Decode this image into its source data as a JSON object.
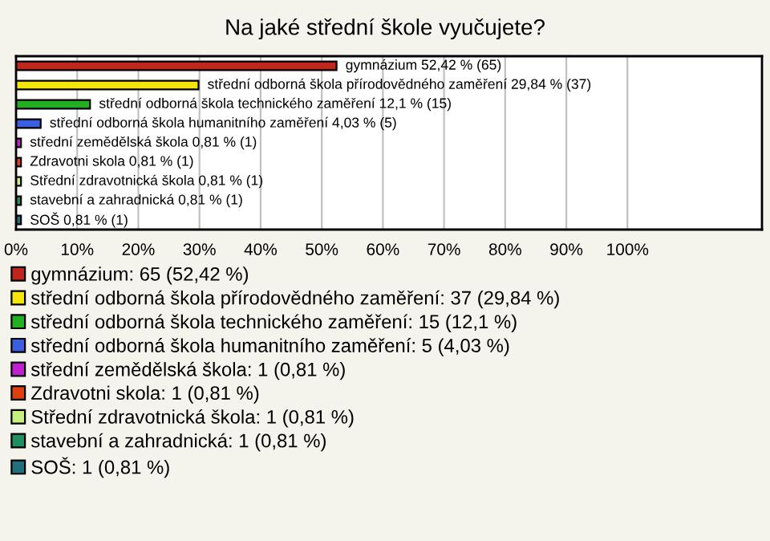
{
  "chart_data": {
    "type": "bar",
    "orientation": "horizontal",
    "title": "Na jaké střední škole vyučujete?",
    "categories": [
      null,
      null,
      null,
      null,
      null,
      null,
      null,
      null,
      null
    ],
    "series": [
      {
        "name": "gymnázium: 65 (52,42 %)",
        "color": "#c0261c",
        "values": [
          52.42,
          null,
          null,
          null,
          null,
          null,
          null,
          null,
          null
        ],
        "value_labels": [
          "gymnázium 52,42 % (65)",
          null,
          null,
          null,
          null,
          null,
          null,
          null,
          null
        ]
      },
      {
        "name": "střední odborná škola přírodovědného zaměření: 37 (29,84 %)",
        "color": "#f5e50a",
        "values": [
          null,
          29.84,
          null,
          null,
          null,
          null,
          null,
          null,
          null
        ],
        "value_labels": [
          null,
          "střední odborná škola přírodovědného zaměření 29,84 % (37)",
          null,
          null,
          null,
          null,
          null,
          null,
          null
        ]
      },
      {
        "name": "střední odborná škola technického zaměření: 15 (12,1 %)",
        "color": "#22b022",
        "values": [
          null,
          null,
          12.1,
          null,
          null,
          null,
          null,
          null,
          null
        ],
        "value_labels": [
          null,
          null,
          "střední odborná škola technického zaměření 12,1 % (15)",
          null,
          null,
          null,
          null,
          null,
          null
        ]
      },
      {
        "name": "střední odborná škola humanitního zaměření: 5 (4,03 %)",
        "color": "#3a5fe0",
        "values": [
          null,
          null,
          null,
          4.03,
          null,
          null,
          null,
          null,
          null
        ],
        "value_labels": [
          null,
          null,
          null,
          "střední odborná škola humanitního zaměření 4,03 % (5)",
          null,
          null,
          null,
          null,
          null
        ]
      },
      {
        "name": "střední zemědělská škola: 1 (0,81 %)",
        "color": "#c020d0",
        "values": [
          null,
          null,
          null,
          null,
          0.81,
          null,
          null,
          null,
          null
        ],
        "value_labels": [
          null,
          null,
          null,
          null,
          "střední zemědělská škola 0,81 % (1)",
          null,
          null,
          null,
          null
        ]
      },
      {
        "name": "Zdravotni skola: 1 (0,81 %)",
        "color": "#e04010",
        "values": [
          null,
          null,
          null,
          null,
          null,
          0.81,
          null,
          null,
          null
        ],
        "value_labels": [
          null,
          null,
          null,
          null,
          null,
          "Zdravotni skola 0,81 % (1)",
          null,
          null,
          null
        ]
      },
      {
        "name": "Střední zdravotnická škola: 1 (0,81 %)",
        "color": "#c8f080",
        "values": [
          null,
          null,
          null,
          null,
          null,
          null,
          0.81,
          null,
          null
        ],
        "value_labels": [
          null,
          null,
          null,
          null,
          null,
          null,
          "Střední zdravotnická škola 0,81 % (1)",
          null,
          null
        ]
      },
      {
        "name": "stavební a zahradnická: 1 (0,81 %)",
        "color": "#209060",
        "values": [
          null,
          null,
          null,
          null,
          null,
          null,
          null,
          0.81,
          null
        ],
        "value_labels": [
          null,
          null,
          null,
          null,
          null,
          null,
          null,
          "stavební a zahradnická 0,81 % (1)",
          null
        ]
      },
      {
        "name": "SOŠ: 1 (0,81 %)",
        "color": "#207080",
        "values": [
          null,
          null,
          null,
          null,
          null,
          null,
          null,
          null,
          0.81
        ],
        "value_labels": [
          null,
          null,
          null,
          null,
          null,
          null,
          null,
          null,
          "SOŠ 0,81 % (1)"
        ]
      }
    ],
    "xlim": [
      0,
      122
    ],
    "xticks": [
      {
        "value": 0,
        "label": "0%"
      },
      {
        "value": 10,
        "label": "10%"
      },
      {
        "value": 20,
        "label": "20%"
      },
      {
        "value": 30,
        "label": "30%"
      },
      {
        "value": 40,
        "label": "40%"
      },
      {
        "value": 50,
        "label": "50%"
      },
      {
        "value": 60,
        "label": "60%"
      },
      {
        "value": 70,
        "label": "70%"
      },
      {
        "value": 80,
        "label": "80%"
      },
      {
        "value": 90,
        "label": "90%"
      },
      {
        "value": 100,
        "label": "100%"
      }
    ],
    "grid": "x",
    "legend": "bottom",
    "tick_labels": "x"
  }
}
